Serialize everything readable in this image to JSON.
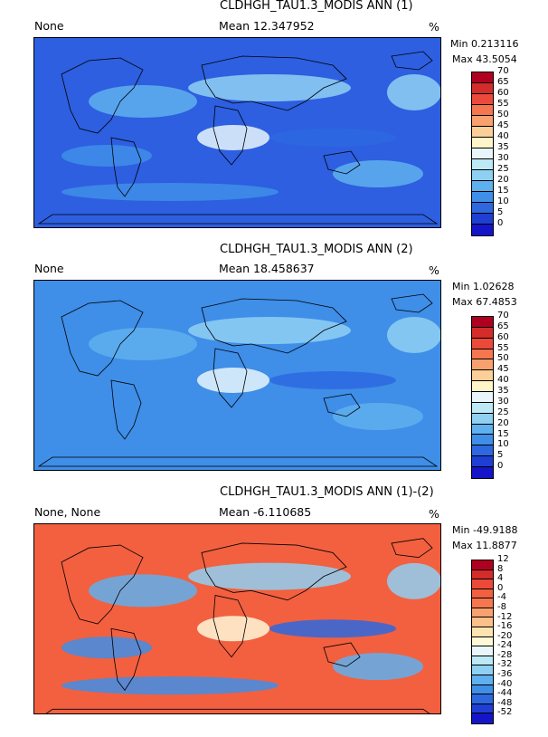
{
  "panels": [
    {
      "title": "CLDHGH_TAU1.3_MODIS ANN (1)",
      "left_label": "None",
      "mean": "Mean 12.347952",
      "units": "%",
      "min": "Min 0.213116",
      "max": "Max 43.5054",
      "levels": [
        "70",
        "65",
        "60",
        "55",
        "50",
        "45",
        "40",
        "35",
        "30",
        "25",
        "20",
        "15",
        "10",
        "5",
        "0"
      ],
      "colors": [
        "#b00020",
        "#d42b2b",
        "#eb4a3a",
        "#f5764f",
        "#f9a16e",
        "#fccf98",
        "#fff5c8",
        "#e8f6fb",
        "#bde8f5",
        "#8fd0f2",
        "#5fb0ee",
        "#3f8ee8",
        "#2d68e0",
        "#1e3ed4",
        "#1414c8"
      ],
      "base": "#2d5fe0"
    },
    {
      "title": "CLDHGH_TAU1.3_MODIS ANN (2)",
      "left_label": "None",
      "mean": "Mean 18.458637",
      "units": "%",
      "min": "Min 1.02628",
      "max": "Max 67.4853",
      "levels": [
        "70",
        "65",
        "60",
        "55",
        "50",
        "45",
        "40",
        "35",
        "30",
        "25",
        "20",
        "15",
        "10",
        "5",
        "0"
      ],
      "colors": [
        "#b00020",
        "#d42b2b",
        "#eb4a3a",
        "#f5764f",
        "#f9a16e",
        "#fccf98",
        "#fff5c8",
        "#e8f6fb",
        "#bde8f5",
        "#8fd0f2",
        "#5fb0ee",
        "#3f8ee8",
        "#2d68e0",
        "#1e3ed4",
        "#1414c8"
      ],
      "base": "#3f8ee8"
    },
    {
      "title": "CLDHGH_TAU1.3_MODIS ANN (1)-(2)",
      "left_label": "None, None",
      "mean": "Mean -6.110685",
      "units": "%",
      "min": "Min -49.9188",
      "max": "Max 11.8877",
      "levels": [
        "12",
        "8",
        "4",
        "0",
        "-4",
        "-8",
        "-12",
        "-16",
        "-20",
        "-24",
        "-28",
        "-32",
        "-36",
        "-40",
        "-44",
        "-48",
        "-52"
      ],
      "colors": [
        "#b00020",
        "#d42b2b",
        "#eb4a3a",
        "#f26040",
        "#f5764f",
        "#f9a16e",
        "#fbc08a",
        "#fde3b0",
        "#fff8d8",
        "#e8f6fb",
        "#bde8f5",
        "#8fd0f2",
        "#5fb0ee",
        "#3f8ee8",
        "#2d68e0",
        "#1e3ed4",
        "#1414c8"
      ],
      "base": "#f26040"
    }
  ]
}
